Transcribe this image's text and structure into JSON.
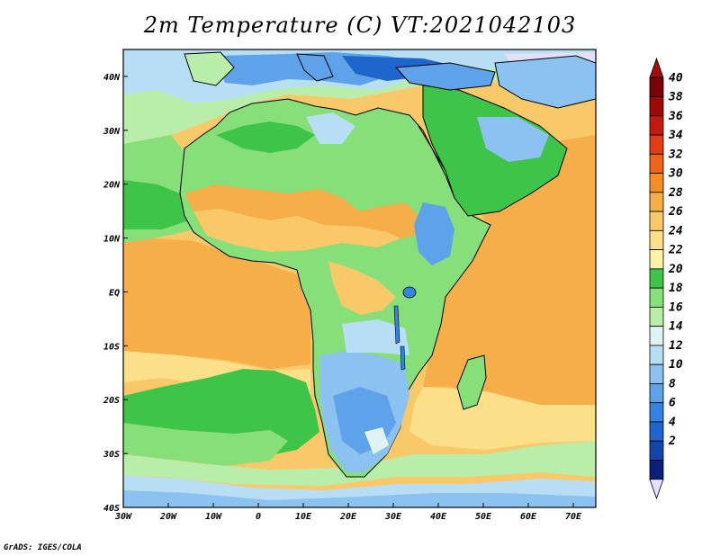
{
  "title": "2m Temperature (C) VT:2021042103",
  "credit": "GrADS: IGES/COLA",
  "map": {
    "lon_range": [
      -30,
      75
    ],
    "lat_range": [
      -40,
      45
    ],
    "lon_ticks": [
      {
        "v": -30,
        "label": "30W"
      },
      {
        "v": -20,
        "label": "20W"
      },
      {
        "v": -10,
        "label": "10W"
      },
      {
        "v": 0,
        "label": "0"
      },
      {
        "v": 10,
        "label": "10E"
      },
      {
        "v": 20,
        "label": "20E"
      },
      {
        "v": 30,
        "label": "30E"
      },
      {
        "v": 40,
        "label": "40E"
      },
      {
        "v": 50,
        "label": "50E"
      },
      {
        "v": 60,
        "label": "60E"
      },
      {
        "v": 70,
        "label": "70E"
      }
    ],
    "lat_ticks": [
      {
        "v": 40,
        "label": "40N"
      },
      {
        "v": 30,
        "label": "30N"
      },
      {
        "v": 20,
        "label": "20N"
      },
      {
        "v": 10,
        "label": "10N"
      },
      {
        "v": 0,
        "label": "EQ"
      },
      {
        "v": -10,
        "label": "10S"
      },
      {
        "v": -20,
        "label": "20S"
      },
      {
        "v": -30,
        "label": "30S"
      },
      {
        "v": -40,
        "label": "40S"
      }
    ]
  },
  "colorbar": {
    "levels": [
      2,
      4,
      6,
      8,
      10,
      12,
      14,
      16,
      18,
      20,
      22,
      24,
      26,
      28,
      30,
      32,
      34,
      36,
      38,
      40
    ],
    "colors": [
      "#0a1f7a",
      "#1246a8",
      "#1f66cc",
      "#3384e0",
      "#5ea3ea",
      "#8cc2f0",
      "#b8def5",
      "#dff4f2",
      "#b9eeaa",
      "#86df79",
      "#3fc44a",
      "#fcf3a6",
      "#fbdf89",
      "#f9c869",
      "#f6ae48",
      "#f48e25",
      "#f06419",
      "#e33b13",
      "#c41a0e",
      "#9c0906",
      "#7a0303"
    ],
    "under_color": "#e3e0ff",
    "over_color": "#a10e0e"
  }
}
